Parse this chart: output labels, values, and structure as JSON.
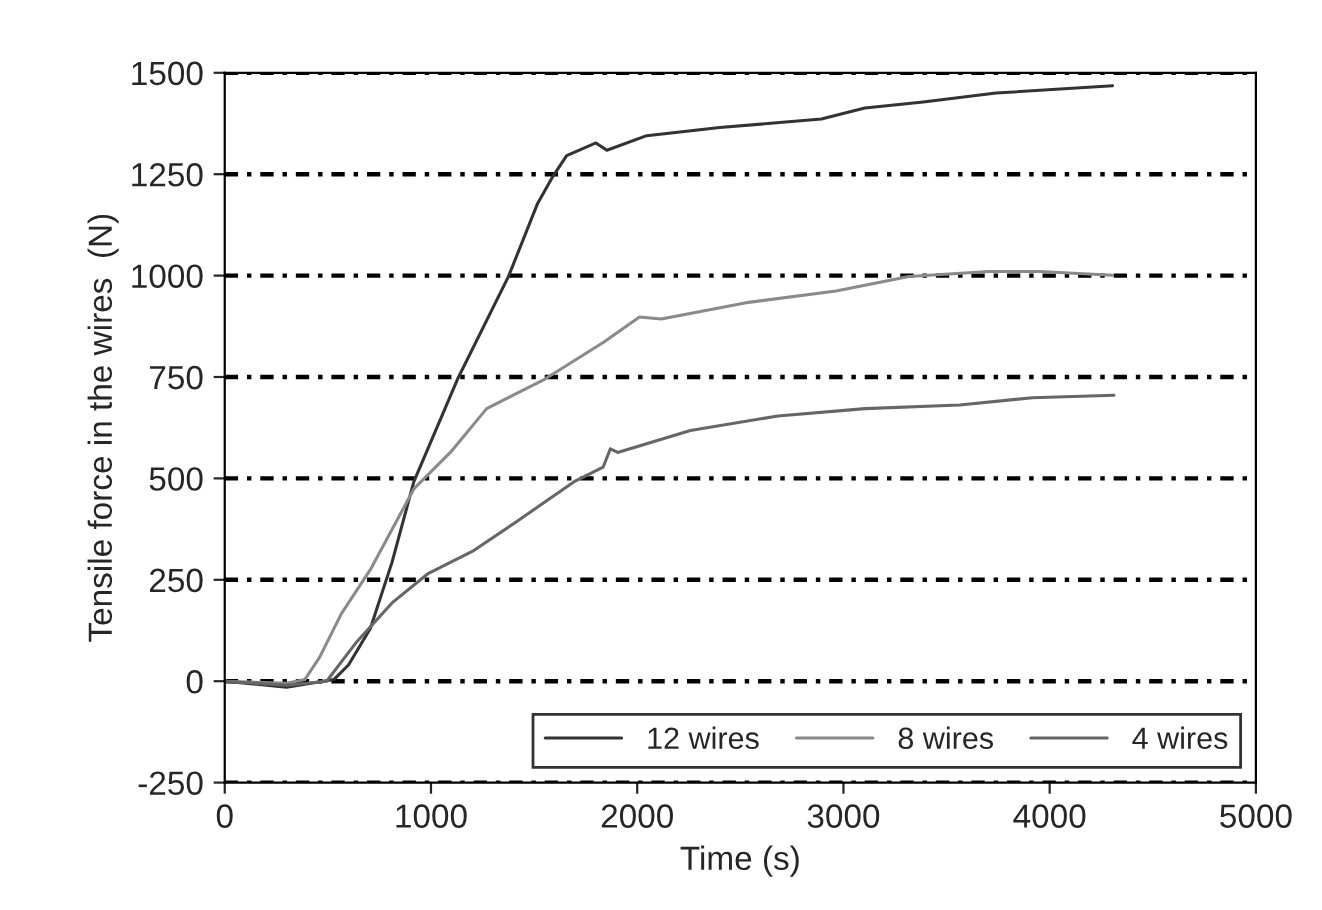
{
  "chart_data": {
    "type": "line",
    "xlabel": "Time (s)",
    "ylabel": "Tensile force in the wires  (N)",
    "xlim": [
      0,
      5000
    ],
    "xticks": [
      0,
      1000,
      2000,
      3000,
      4000,
      5000
    ],
    "ylim": [
      -250,
      1500
    ],
    "yticks": [
      -250,
      0,
      250,
      500,
      750,
      1000,
      1250,
      1500
    ],
    "grid": "y",
    "legend": "bottom right",
    "line_style": "solid",
    "marker": "none",
    "series": [
      {
        "name": "12 wires",
        "color": "#333333",
        "x": [
          0,
          300,
          529,
          600,
          706,
          811,
          917,
          1129,
          1376,
          1517,
          1588,
          1658,
          1800,
          1853,
          2046,
          2400,
          2893,
          3104,
          3387,
          3740,
          4305
        ],
        "values": [
          0,
          -15,
          4,
          40,
          130,
          293,
          492,
          745,
          998,
          1178,
          1242,
          1296,
          1327,
          1309,
          1345,
          1365,
          1386,
          1413,
          1428,
          1450,
          1468
        ]
      },
      {
        "name": "8 wires",
        "color": "#8a8a8a",
        "x": [
          0,
          300,
          388,
          459,
          565,
          706,
          917,
          1094,
          1270,
          1553,
          1835,
          2011,
          2117,
          2541,
          2964,
          3317,
          3705,
          3952,
          4305
        ],
        "values": [
          0,
          -5,
          4,
          58,
          166,
          275,
          474,
          564,
          672,
          745,
          835,
          898,
          893,
          934,
          962,
          998,
          1010,
          1010,
          1001
        ]
      },
      {
        "name": "4 wires",
        "color": "#666666",
        "x": [
          0,
          300,
          494,
          635,
          811,
          988,
          1200,
          1411,
          1694,
          1835,
          1870,
          1905,
          2258,
          2682,
          3104,
          3564,
          3917,
          4312
        ],
        "values": [
          0,
          -10,
          0,
          94,
          193,
          266,
          320,
          392,
          492,
          528,
          573,
          564,
          618,
          654,
          672,
          681,
          699,
          705
        ]
      }
    ]
  }
}
